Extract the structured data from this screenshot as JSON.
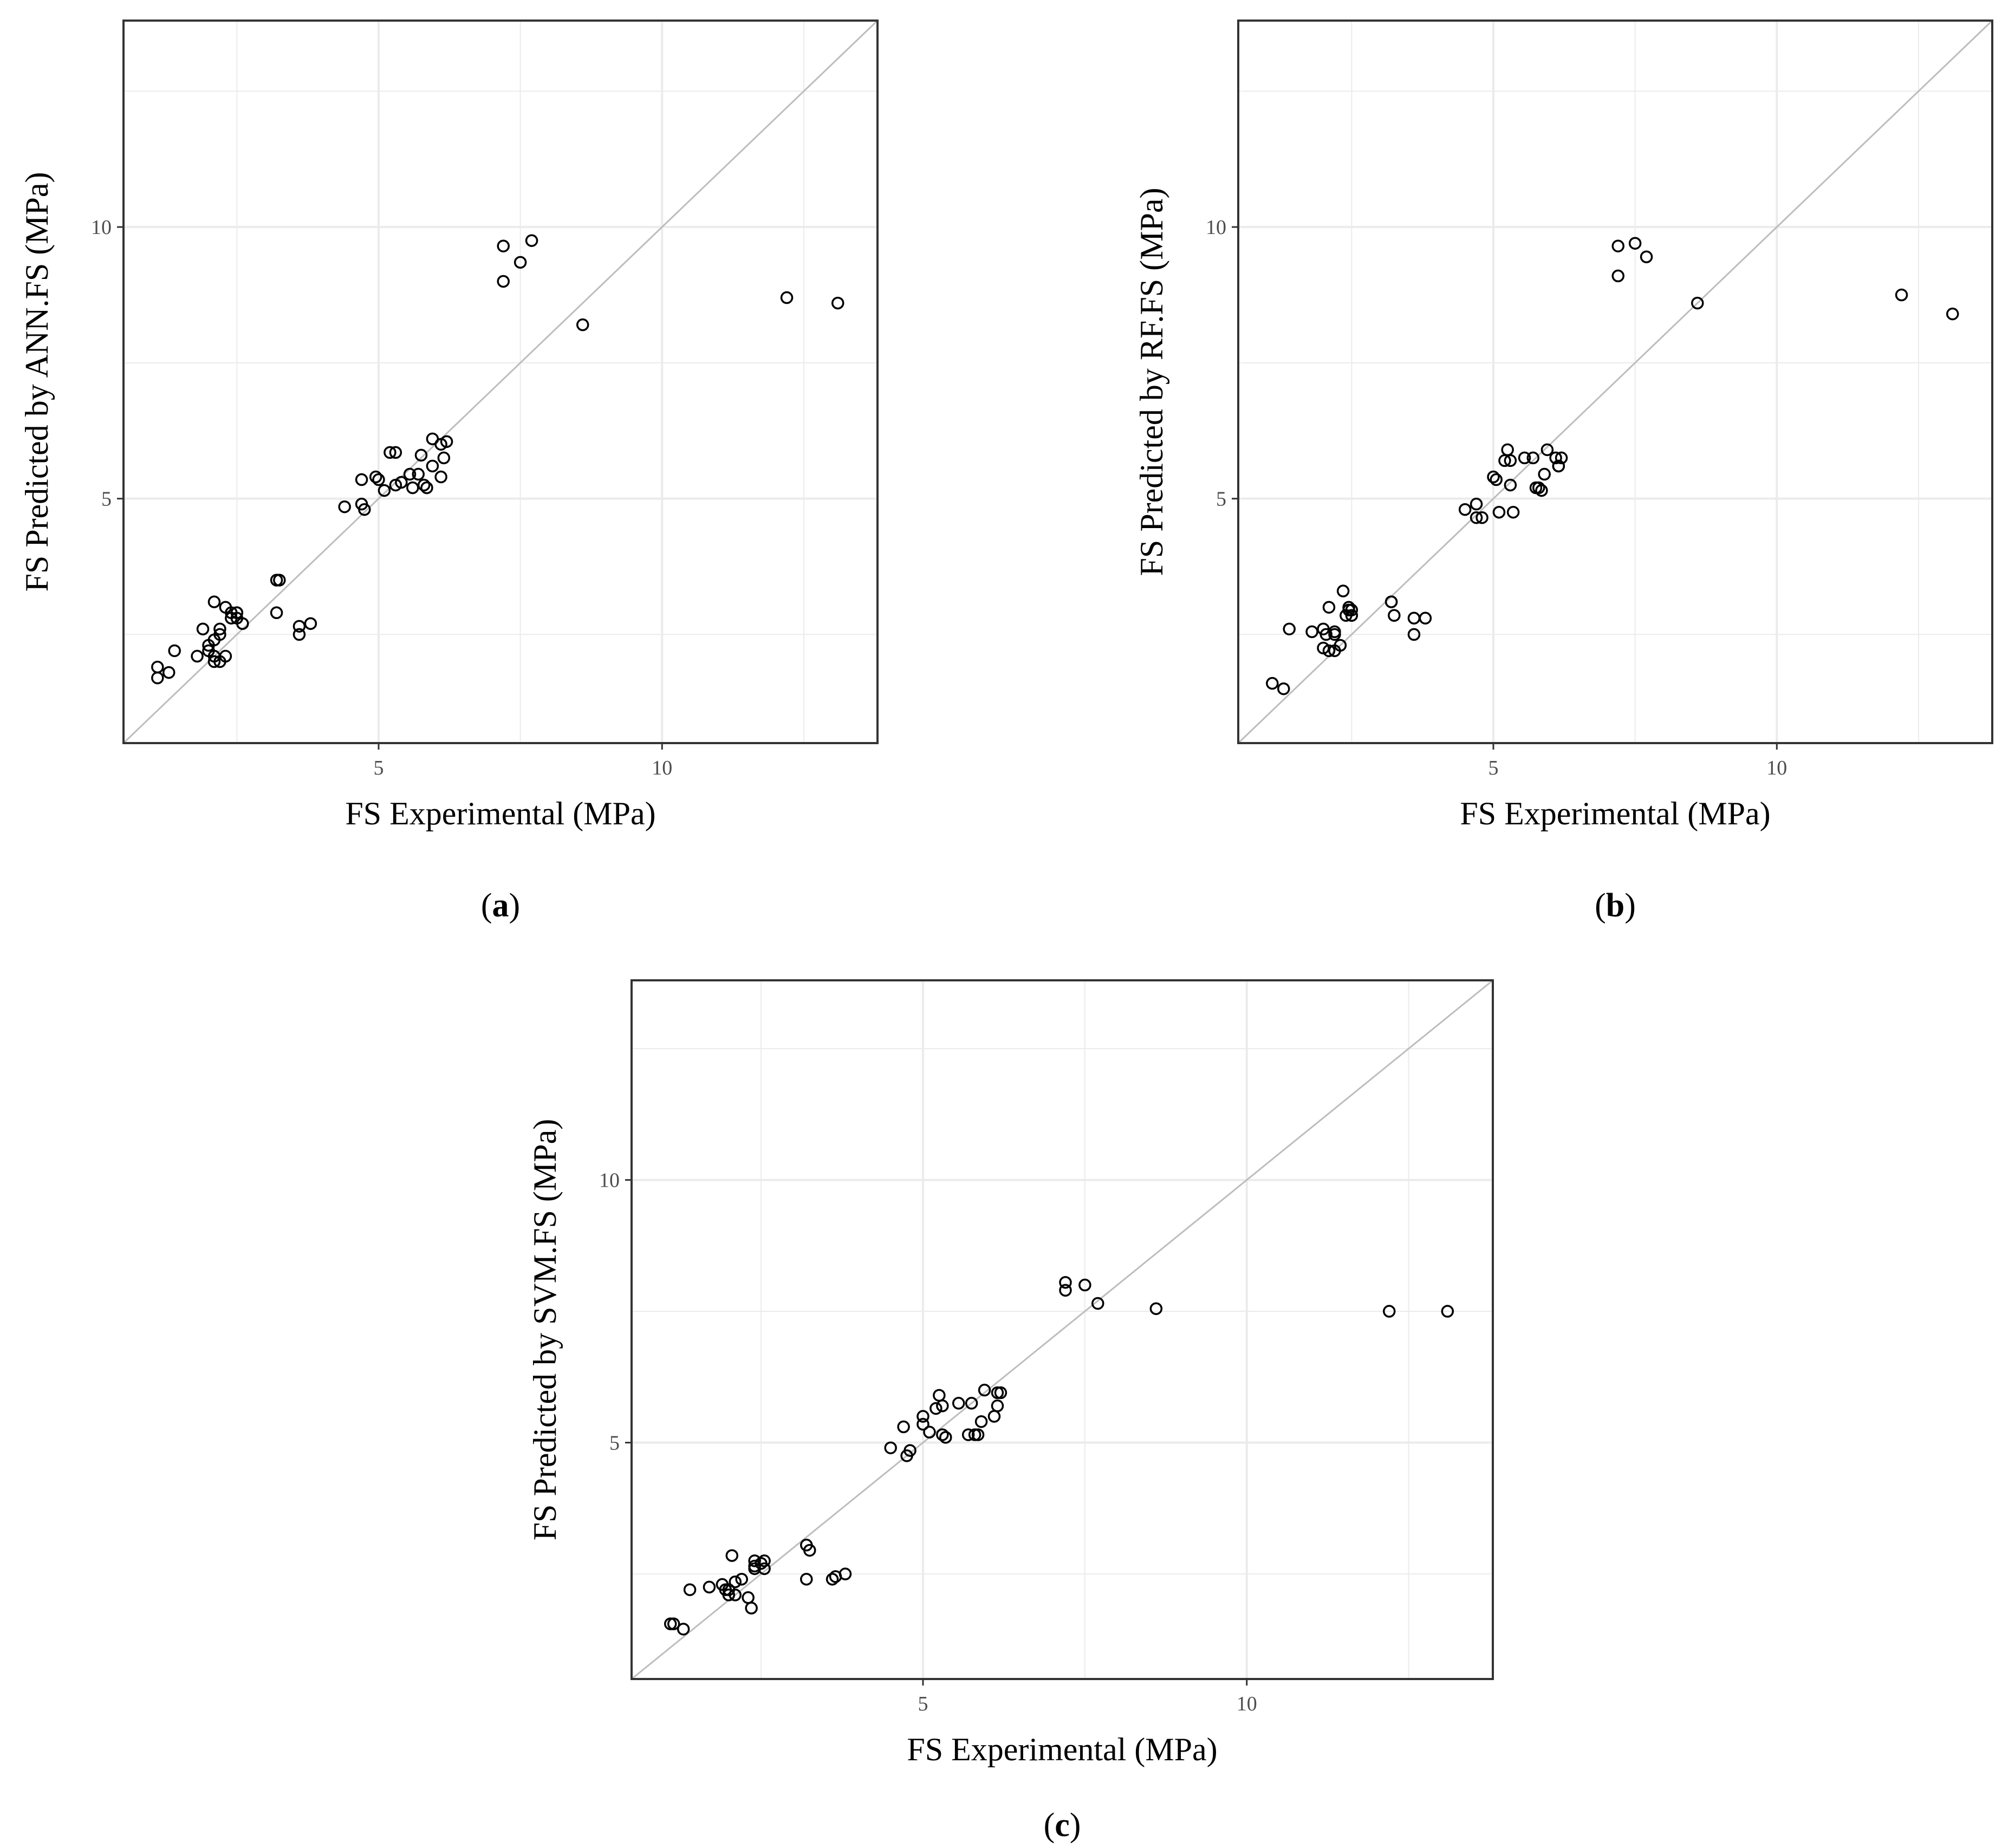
{
  "chart_data": [
    {
      "type": "scatter",
      "panel_label": "a",
      "xlabel": "FS Experimental (MPa)",
      "ylabel": "FS Predicted by ANN.FS (MPa)",
      "xlim": [
        0.5,
        13.8
      ],
      "ylim": [
        0.5,
        13.8
      ],
      "xticks": [
        5,
        10
      ],
      "yticks": [
        5,
        10
      ],
      "grid": true,
      "reference_line": "y = x",
      "points": [
        [
          1.1,
          1.7
        ],
        [
          1.1,
          1.9
        ],
        [
          1.3,
          1.8
        ],
        [
          1.4,
          2.2
        ],
        [
          1.8,
          2.1
        ],
        [
          1.9,
          2.6
        ],
        [
          2.0,
          2.3
        ],
        [
          2.0,
          2.2
        ],
        [
          2.1,
          2.4
        ],
        [
          2.1,
          3.1
        ],
        [
          2.1,
          2.1
        ],
        [
          2.2,
          2.5
        ],
        [
          2.2,
          2.6
        ],
        [
          2.2,
          2.0
        ],
        [
          2.1,
          2.0
        ],
        [
          2.3,
          2.1
        ],
        [
          2.3,
          3.0
        ],
        [
          2.4,
          2.8
        ],
        [
          2.4,
          2.9
        ],
        [
          2.5,
          2.9
        ],
        [
          2.5,
          2.8
        ],
        [
          2.6,
          2.7
        ],
        [
          2.5,
          2.9
        ],
        [
          3.2,
          3.5
        ],
        [
          3.25,
          3.5
        ],
        [
          3.2,
          2.9
        ],
        [
          3.6,
          2.65
        ],
        [
          3.6,
          2.5
        ],
        [
          3.8,
          2.7
        ],
        [
          4.4,
          4.85
        ],
        [
          4.7,
          4.9
        ],
        [
          4.75,
          4.8
        ],
        [
          4.7,
          5.35
        ],
        [
          4.95,
          5.4
        ],
        [
          5.0,
          5.35
        ],
        [
          5.1,
          5.15
        ],
        [
          5.2,
          5.85
        ],
        [
          5.3,
          5.85
        ],
        [
          5.3,
          5.25
        ],
        [
          5.4,
          5.3
        ],
        [
          5.55,
          5.45
        ],
        [
          5.6,
          5.2
        ],
        [
          5.7,
          5.45
        ],
        [
          5.75,
          5.8
        ],
        [
          5.8,
          5.25
        ],
        [
          5.85,
          5.2
        ],
        [
          5.95,
          5.6
        ],
        [
          5.95,
          6.1
        ],
        [
          6.1,
          5.4
        ],
        [
          6.1,
          6.0
        ],
        [
          6.15,
          5.75
        ],
        [
          6.2,
          6.05
        ],
        [
          7.2,
          9.0
        ],
        [
          7.2,
          9.65
        ],
        [
          7.5,
          9.35
        ],
        [
          7.7,
          9.75
        ],
        [
          8.6,
          8.2
        ],
        [
          12.2,
          8.7
        ],
        [
          13.1,
          8.6
        ]
      ]
    },
    {
      "type": "scatter",
      "panel_label": "b",
      "xlabel": "FS Experimental (MPa)",
      "ylabel": "FS Predicted by RF.FS (MPa)",
      "xlim": [
        0.5,
        13.8
      ],
      "ylim": [
        0.5,
        13.8
      ],
      "xticks": [
        5,
        10
      ],
      "yticks": [
        5,
        10
      ],
      "grid": true,
      "reference_line": "y = x",
      "points": [
        [
          1.1,
          1.6
        ],
        [
          1.3,
          1.5
        ],
        [
          1.4,
          2.6
        ],
        [
          1.8,
          2.55
        ],
        [
          2.0,
          2.6
        ],
        [
          2.0,
          2.25
        ],
        [
          2.05,
          2.5
        ],
        [
          2.1,
          3.0
        ],
        [
          2.1,
          2.2
        ],
        [
          2.2,
          2.5
        ],
        [
          2.2,
          2.55
        ],
        [
          2.2,
          2.2
        ],
        [
          2.3,
          2.3
        ],
        [
          2.35,
          3.3
        ],
        [
          2.4,
          2.85
        ],
        [
          2.45,
          2.95
        ],
        [
          2.5,
          2.95
        ],
        [
          2.5,
          2.85
        ],
        [
          2.45,
          3.0
        ],
        [
          3.2,
          3.1
        ],
        [
          3.25,
          2.85
        ],
        [
          3.2,
          3.1
        ],
        [
          3.6,
          2.8
        ],
        [
          3.6,
          2.5
        ],
        [
          3.8,
          2.8
        ],
        [
          4.5,
          4.8
        ],
        [
          4.7,
          4.9
        ],
        [
          4.7,
          4.65
        ],
        [
          4.8,
          4.65
        ],
        [
          5.0,
          5.4
        ],
        [
          5.05,
          5.35
        ],
        [
          5.1,
          4.75
        ],
        [
          5.2,
          5.7
        ],
        [
          5.25,
          5.9
        ],
        [
          5.3,
          5.25
        ],
        [
          5.35,
          4.75
        ],
        [
          5.3,
          5.7
        ],
        [
          5.55,
          5.75
        ],
        [
          5.7,
          5.75
        ],
        [
          5.75,
          5.2
        ],
        [
          5.8,
          5.2
        ],
        [
          5.85,
          5.15
        ],
        [
          5.9,
          5.45
        ],
        [
          5.95,
          5.9
        ],
        [
          6.1,
          5.75
        ],
        [
          6.15,
          5.6
        ],
        [
          6.2,
          5.75
        ],
        [
          6.15,
          5.6
        ],
        [
          7.2,
          9.1
        ],
        [
          7.2,
          9.65
        ],
        [
          7.5,
          9.7
        ],
        [
          7.7,
          9.45
        ],
        [
          8.6,
          8.6
        ],
        [
          12.2,
          8.75
        ],
        [
          13.1,
          8.4
        ]
      ]
    },
    {
      "type": "scatter",
      "panel_label": "c",
      "xlabel": "FS Experimental (MPa)",
      "ylabel": "FS Predicted by SVM.FS (MPa)",
      "xlim": [
        0.5,
        13.8
      ],
      "ylim": [
        0.5,
        13.8
      ],
      "xticks": [
        5,
        10
      ],
      "yticks": [
        5,
        10
      ],
      "grid": true,
      "reference_line": "y = x",
      "points": [
        [
          1.1,
          1.55
        ],
        [
          1.15,
          1.55
        ],
        [
          1.3,
          1.45
        ],
        [
          1.4,
          2.2
        ],
        [
          1.7,
          2.25
        ],
        [
          1.9,
          2.3
        ],
        [
          1.95,
          2.2
        ],
        [
          2.0,
          2.1
        ],
        [
          2.0,
          2.2
        ],
        [
          2.1,
          2.1
        ],
        [
          2.05,
          2.85
        ],
        [
          2.1,
          2.35
        ],
        [
          2.2,
          2.4
        ],
        [
          2.3,
          2.05
        ],
        [
          2.35,
          1.85
        ],
        [
          2.4,
          2.75
        ],
        [
          2.4,
          2.6
        ],
        [
          2.4,
          2.65
        ],
        [
          2.5,
          2.7
        ],
        [
          2.55,
          2.6
        ],
        [
          2.55,
          2.75
        ],
        [
          3.2,
          3.05
        ],
        [
          3.25,
          2.95
        ],
        [
          3.2,
          2.4
        ],
        [
          3.6,
          2.4
        ],
        [
          3.65,
          2.45
        ],
        [
          3.8,
          2.5
        ],
        [
          4.5,
          4.9
        ],
        [
          4.7,
          5.3
        ],
        [
          4.75,
          4.75
        ],
        [
          4.8,
          4.85
        ],
        [
          5.0,
          5.35
        ],
        [
          5.0,
          5.5
        ],
        [
          5.1,
          5.2
        ],
        [
          5.2,
          5.65
        ],
        [
          5.25,
          5.9
        ],
        [
          5.3,
          5.15
        ],
        [
          5.35,
          5.1
        ],
        [
          5.3,
          5.7
        ],
        [
          5.55,
          5.75
        ],
        [
          5.7,
          5.15
        ],
        [
          5.75,
          5.75
        ],
        [
          5.8,
          5.15
        ],
        [
          5.85,
          5.15
        ],
        [
          5.9,
          5.4
        ],
        [
          5.95,
          6.0
        ],
        [
          6.1,
          5.5
        ],
        [
          6.15,
          5.7
        ],
        [
          6.15,
          5.95
        ],
        [
          6.2,
          5.95
        ],
        [
          7.2,
          7.9
        ],
        [
          7.2,
          8.05
        ],
        [
          7.5,
          8.0
        ],
        [
          7.7,
          7.65
        ],
        [
          8.6,
          7.55
        ],
        [
          12.2,
          7.5
        ],
        [
          13.1,
          7.5
        ]
      ]
    }
  ]
}
